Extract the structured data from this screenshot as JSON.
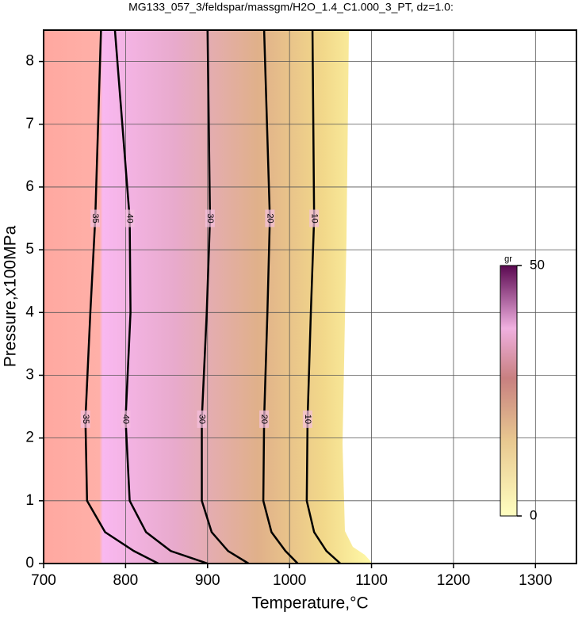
{
  "chart_data": {
    "type": "contour",
    "title": "MG133_057_3/feldspar/massgm/H2O_1.4_C1.000_3_PT, dz=1.0:",
    "xlabel": "Temperature,°C",
    "ylabel": "Pressure,x100MPa",
    "xlim": [
      700,
      1350
    ],
    "ylim": [
      0,
      8.5
    ],
    "xticks": [
      700,
      800,
      900,
      1000,
      1100,
      1200,
      1300
    ],
    "yticks": [
      0,
      1,
      2,
      3,
      4,
      5,
      6,
      7,
      8
    ],
    "grid": true,
    "contours": [
      {
        "level": 35,
        "x": [
          770,
          763,
          757,
          751,
          753,
          775,
          810,
          840
        ],
        "y": [
          8.5,
          5.5,
          4,
          2.3,
          1,
          0.5,
          0.2,
          0
        ]
      },
      {
        "level": 40,
        "x": [
          787,
          805,
          806,
          800,
          805,
          825,
          855,
          900
        ],
        "y": [
          8.5,
          5.5,
          4,
          2.3,
          1,
          0.5,
          0.2,
          0
        ]
      },
      {
        "level": 30,
        "x": [
          900,
          903,
          899,
          893,
          893,
          905,
          925,
          950
        ],
        "y": [
          8.5,
          5.5,
          4,
          2.3,
          1,
          0.5,
          0.2,
          0
        ]
      },
      {
        "level": 20,
        "x": [
          969,
          976,
          973,
          969,
          968,
          978,
          995,
          1010
        ],
        "y": [
          8.5,
          5.5,
          4,
          2.3,
          1,
          0.5,
          0.2,
          0
        ]
      },
      {
        "level": 10,
        "x": [
          1028,
          1030,
          1026,
          1022,
          1021,
          1030,
          1045,
          1062
        ],
        "y": [
          8.5,
          5.5,
          4,
          2.3,
          1,
          0.5,
          0.2,
          0
        ]
      }
    ],
    "colorbar": {
      "label": "gr",
      "lim": [
        0,
        50
      ],
      "ticks": [
        0,
        50
      ]
    }
  }
}
